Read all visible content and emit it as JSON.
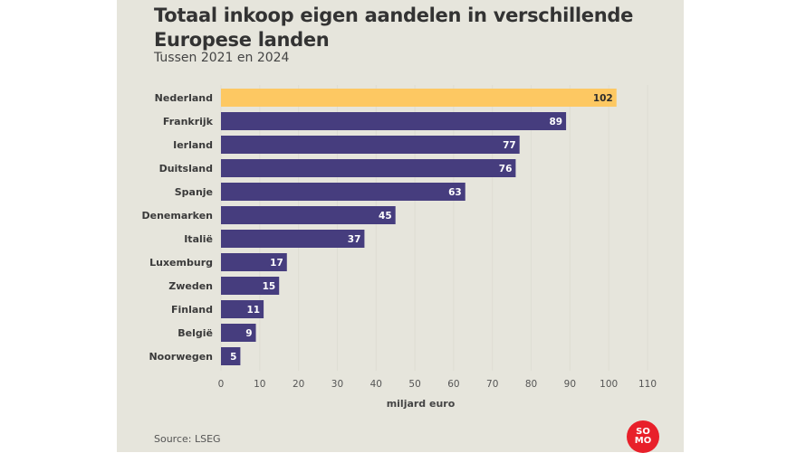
{
  "chart_data": {
    "type": "bar",
    "orientation": "horizontal",
    "title": "Totaal inkoop eigen aandelen in verschillende Europese landen",
    "subtitle": "Tussen 2021 en 2024",
    "categories": [
      "Nederland",
      "Frankrijk",
      "Ierland",
      "Duitsland",
      "Spanje",
      "Denemarken",
      "Italië",
      "Luxemburg",
      "Zweden",
      "Finland",
      "België",
      "Noorwegen"
    ],
    "values": [
      102,
      89,
      77,
      76,
      63,
      45,
      37,
      17,
      15,
      11,
      9,
      5
    ],
    "highlight": "Nederland",
    "xlabel": "miljard euro",
    "ylabel": "",
    "xlim": [
      0,
      110
    ],
    "xticks": [
      0,
      10,
      20,
      30,
      40,
      50,
      60,
      70,
      80,
      90,
      100,
      110
    ],
    "grid": true,
    "colors": {
      "bar": "#463d7e",
      "highlight": "#fdc862",
      "label_dark": "#2d2d2d",
      "label_light": "#ffffff"
    }
  },
  "source": "Source: LSEG",
  "logo": {
    "line1": "SO",
    "line2": "MO",
    "color": "#e8202a"
  }
}
